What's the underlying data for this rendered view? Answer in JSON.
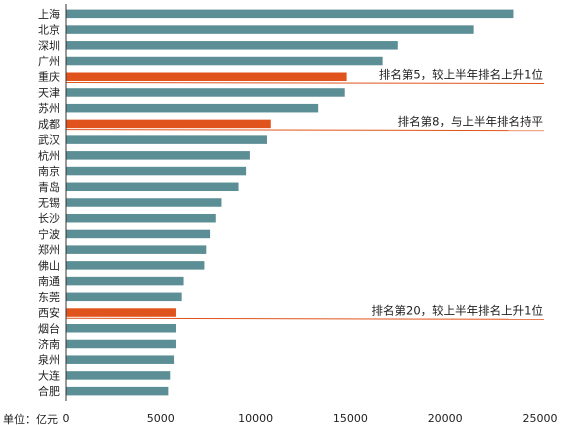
{
  "chart_data": {
    "type": "bar",
    "orientation": "horizontal",
    "unit_label": "单位：亿元",
    "xlim": [
      0,
      25000
    ],
    "x_ticks": [
      0,
      5000,
      10000,
      15000,
      20000,
      25000
    ],
    "grid": false,
    "categories": [
      "上海",
      "北京",
      "深圳",
      "广州",
      "重庆",
      "天津",
      "苏州",
      "成都",
      "武汉",
      "杭州",
      "南京",
      "青岛",
      "无锡",
      "长沙",
      "宁波",
      "郑州",
      "佛山",
      "南通",
      "东莞",
      "西安",
      "烟台",
      "济南",
      "泉州",
      "大连",
      "合肥"
    ],
    "values": [
      23600,
      21500,
      17500,
      16700,
      14800,
      14700,
      13300,
      10800,
      10600,
      9700,
      9500,
      9100,
      8200,
      7900,
      7600,
      7400,
      7300,
      6200,
      6100,
      5800,
      5800,
      5800,
      5700,
      5500,
      5400
    ],
    "highlighted": [
      "重庆",
      "成都",
      "西安"
    ],
    "colors": {
      "bar": "#5b8e95",
      "highlight": "#e0531c",
      "axis": "#333333",
      "note_line": "#e0531c"
    },
    "annotations": [
      {
        "category": "重庆",
        "text": "排名第5，较上半年排名上升1位"
      },
      {
        "category": "成都",
        "text": "排名第8，与上半年排名持平"
      },
      {
        "category": "西安",
        "text": "排名第20，较上半年排名上升1位"
      }
    ]
  }
}
